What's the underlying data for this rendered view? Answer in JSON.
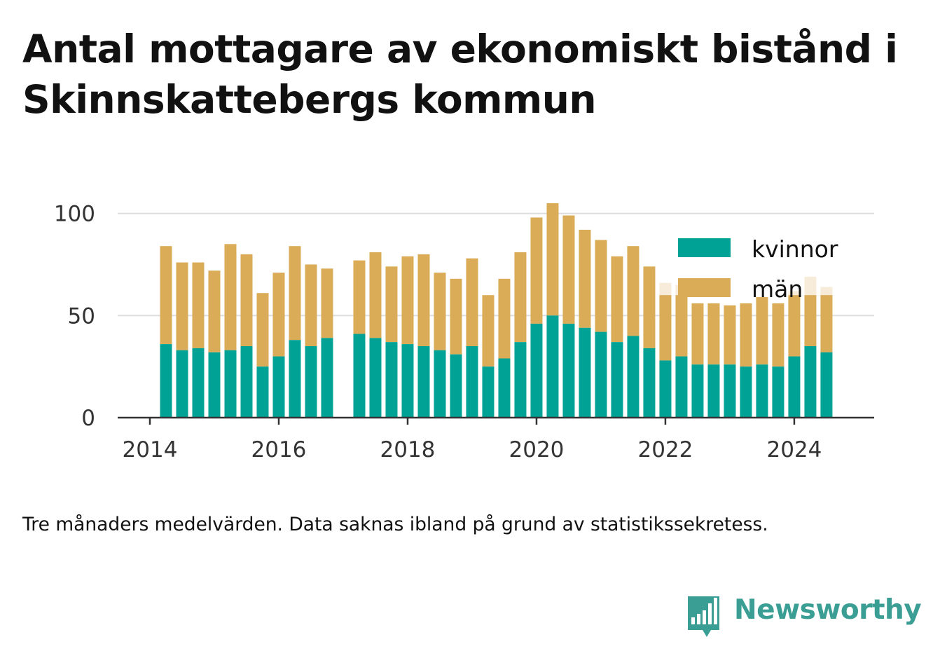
{
  "title": "Antal mottagare av ekonomiskt bistånd i Skinnskattebergs kommun",
  "footnote": "Tre månaders medelvärden. Data saknas ibland på grund av statistikssekretess.",
  "brand": {
    "name": "Newsworthy",
    "color": "#3a9e94",
    "icon": "bar-chart-speech-bubble-icon"
  },
  "chart_data": {
    "type": "bar",
    "stacked": true,
    "xlabel": "",
    "ylabel": "",
    "ylim": [
      0,
      105
    ],
    "yticks": [
      0,
      50,
      100
    ],
    "xticks": [
      2014,
      2016,
      2018,
      2020,
      2022,
      2024
    ],
    "xlim": [
      2013.5,
      2025.24
    ],
    "grid": true,
    "legend": "top-right",
    "colors": {
      "kvinnor": "#00a296",
      "män": "#daac58",
      "suppressed": "#f7ecd9"
    },
    "x": [
      2014.25,
      2014.5,
      2014.75,
      2015.0,
      2015.25,
      2015.5,
      2015.75,
      2016.0,
      2016.25,
      2016.5,
      2016.75,
      2017.25,
      2017.5,
      2017.75,
      2018.0,
      2018.25,
      2018.5,
      2018.75,
      2019.0,
      2019.25,
      2019.5,
      2019.75,
      2020.0,
      2020.25,
      2020.5,
      2020.75,
      2021.0,
      2021.25,
      2021.5,
      2021.75,
      2022.0,
      2022.25,
      2022.5,
      2022.75,
      2023.0,
      2023.25,
      2023.5,
      2023.75,
      2024.0,
      2024.25,
      2024.5
    ],
    "series": [
      {
        "name": "kvinnor",
        "values": [
          36,
          33,
          34,
          32,
          33,
          35,
          25,
          30,
          38,
          35,
          39,
          41,
          39,
          37,
          36,
          35,
          33,
          31,
          35,
          25,
          29,
          37,
          46,
          50,
          46,
          44,
          42,
          37,
          40,
          34,
          28,
          30,
          26,
          26,
          26,
          25,
          26,
          25,
          30,
          35,
          32
        ]
      },
      {
        "name": "män",
        "values": [
          48,
          43,
          42,
          40,
          52,
          45,
          36,
          41,
          46,
          40,
          34,
          36,
          42,
          37,
          43,
          45,
          38,
          37,
          43,
          35,
          39,
          44,
          52,
          55,
          53,
          48,
          45,
          42,
          44,
          40,
          32,
          30,
          30,
          30,
          29,
          31,
          33,
          31,
          30,
          25,
          28
        ]
      }
    ],
    "suppressed_totals": [
      {
        "x": 2022.0,
        "value": 66
      },
      {
        "x": 2022.25,
        "value": 65
      },
      {
        "x": 2024.0,
        "value": 62
      },
      {
        "x": 2024.25,
        "value": 69
      },
      {
        "x": 2024.5,
        "value": 64
      }
    ]
  }
}
